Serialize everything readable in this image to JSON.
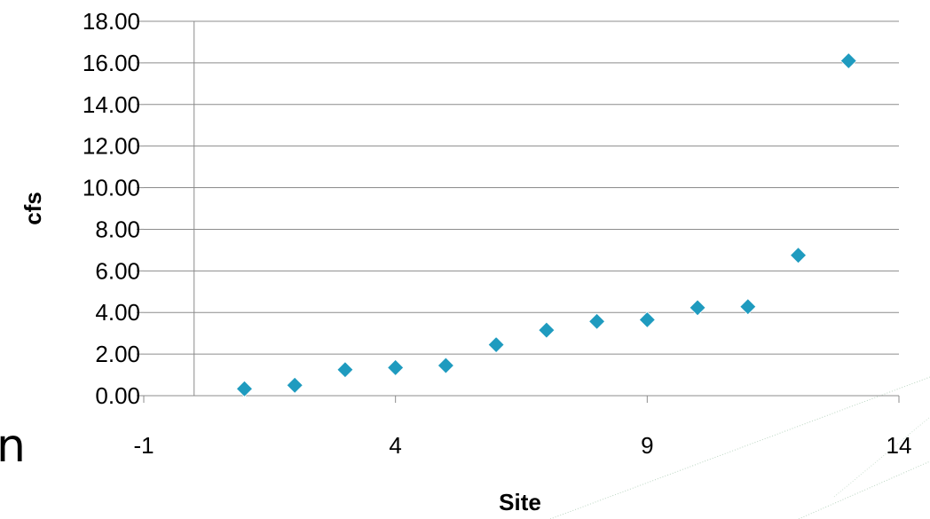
{
  "side_fragment": "n",
  "colors": {
    "marker": "#1f9bbf",
    "gridline": "#8c8c8c",
    "axis": "#8c8c8c",
    "decor_line": "#9ec4a8"
  },
  "chart_data": {
    "type": "scatter",
    "title": "",
    "xlabel": "Site",
    "ylabel": "cfs",
    "xlim": [
      -1,
      14
    ],
    "ylim": [
      0,
      18
    ],
    "x_ticks": [
      -1,
      4,
      9,
      14
    ],
    "y_ticks": [
      0,
      2,
      4,
      6,
      8,
      10,
      12,
      14,
      16,
      18
    ],
    "y_tick_labels": [
      "0.00",
      "2.00",
      "4.00",
      "6.00",
      "8.00",
      "10.00",
      "12.00",
      "14.00",
      "16.00",
      "18.00"
    ],
    "x_tick_labels": [
      "-1",
      "4",
      "9",
      "14"
    ],
    "grid": "horizontal",
    "legend": "none",
    "marker": "diamond",
    "series": [
      {
        "x": [
          1,
          2,
          3,
          4,
          5,
          6,
          7,
          8,
          9,
          10,
          11,
          12,
          13
        ],
        "y": [
          0.33,
          0.5,
          1.25,
          1.35,
          1.45,
          2.45,
          3.15,
          3.57,
          3.65,
          4.23,
          4.28,
          6.75,
          16.1
        ]
      }
    ]
  }
}
